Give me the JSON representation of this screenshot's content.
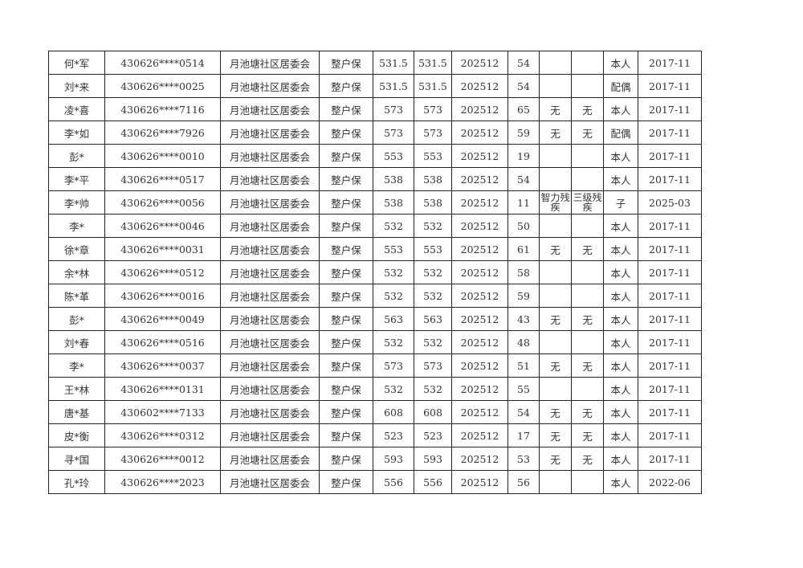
{
  "table": {
    "rows": [
      [
        "何*军",
        "430626****0514",
        "月池塘社区居委会",
        "整户保",
        "531.5",
        "531.5",
        "202512",
        "54",
        "",
        "",
        "本人",
        "2017-11"
      ],
      [
        "刘*来",
        "430626****0025",
        "月池塘社区居委会",
        "整户保",
        "531.5",
        "531.5",
        "202512",
        "54",
        "",
        "",
        "配偶",
        "2017-11"
      ],
      [
        "凌*喜",
        "430626****7116",
        "月池塘社区居委会",
        "整户保",
        "573",
        "573",
        "202512",
        "65",
        "无",
        "无",
        "本人",
        "2017-11"
      ],
      [
        "李*如",
        "430626****7926",
        "月池塘社区居委会",
        "整户保",
        "573",
        "573",
        "202512",
        "59",
        "无",
        "无",
        "配偶",
        "2017-11"
      ],
      [
        "彭*",
        "430626****0010",
        "月池塘社区居委会",
        "整户保",
        "553",
        "553",
        "202512",
        "19",
        "",
        "",
        "本人",
        "2017-11"
      ],
      [
        "李*平",
        "430626****0517",
        "月池塘社区居委会",
        "整户保",
        "538",
        "538",
        "202512",
        "54",
        "",
        "",
        "本人",
        "2017-11"
      ],
      [
        "李*帅",
        "430626****0056",
        "月池塘社区居委会",
        "整户保",
        "538",
        "538",
        "202512",
        "11",
        "智力残疾",
        "三级残疾",
        "子",
        "2025-03"
      ],
      [
        "李*",
        "430626****0046",
        "月池塘社区居委会",
        "整户保",
        "532",
        "532",
        "202512",
        "50",
        "",
        "",
        "本人",
        "2017-11"
      ],
      [
        "徐*章",
        "430626****0031",
        "月池塘社区居委会",
        "整户保",
        "553",
        "553",
        "202512",
        "61",
        "无",
        "无",
        "本人",
        "2017-11"
      ],
      [
        "余*林",
        "430626****0512",
        "月池塘社区居委会",
        "整户保",
        "532",
        "532",
        "202512",
        "58",
        "",
        "",
        "本人",
        "2017-11"
      ],
      [
        "陈*革",
        "430626****0016",
        "月池塘社区居委会",
        "整户保",
        "532",
        "532",
        "202512",
        "59",
        "",
        "",
        "本人",
        "2017-11"
      ],
      [
        "彭*",
        "430626****0049",
        "月池塘社区居委会",
        "整户保",
        "563",
        "563",
        "202512",
        "43",
        "无",
        "无",
        "本人",
        "2017-11"
      ],
      [
        "刘*春",
        "430626****0516",
        "月池塘社区居委会",
        "整户保",
        "532",
        "532",
        "202512",
        "48",
        "",
        "",
        "本人",
        "2017-11"
      ],
      [
        "李*",
        "430626****0037",
        "月池塘社区居委会",
        "整户保",
        "573",
        "573",
        "202512",
        "51",
        "无",
        "无",
        "本人",
        "2017-11"
      ],
      [
        "王*林",
        "430626****0131",
        "月池塘社区居委会",
        "整户保",
        "532",
        "532",
        "202512",
        "55",
        "",
        "",
        "本人",
        "2017-11"
      ],
      [
        "唐*基",
        "430602****7133",
        "月池塘社区居委会",
        "整户保",
        "608",
        "608",
        "202512",
        "54",
        "无",
        "无",
        "本人",
        "2017-11"
      ],
      [
        "皮*衡",
        "430626****0312",
        "月池塘社区居委会",
        "整户保",
        "523",
        "523",
        "202512",
        "17",
        "无",
        "无",
        "本人",
        "2017-11"
      ],
      [
        "寻*国",
        "430626****0012",
        "月池塘社区居委会",
        "整户保",
        "593",
        "593",
        "202512",
        "53",
        "无",
        "无",
        "本人",
        "2017-11"
      ],
      [
        "孔*玲",
        "430626****2023",
        "月池塘社区居委会",
        "整户保",
        "556",
        "556",
        "202512",
        "56",
        "",
        "",
        "本人",
        "2022-06"
      ]
    ]
  }
}
